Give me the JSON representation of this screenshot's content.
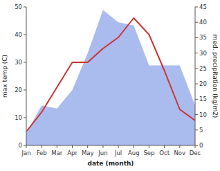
{
  "chart_data": {
    "type": "line",
    "xlabel": "date (month)",
    "ylabel": "max temp (C)",
    "y2label": "med. precipitation (kg/m2)",
    "categories": [
      "Jan",
      "Feb",
      "Mar",
      "Apr",
      "May",
      "Jun",
      "Jul",
      "Aug",
      "Sep",
      "Oct",
      "Nov",
      "Dec"
    ],
    "series": [
      {
        "type": "area",
        "axis": "y2",
        "color": "#aabbee",
        "values": [
          4,
          13,
          12,
          18,
          30,
          44,
          40,
          39,
          26,
          26,
          26,
          13
        ]
      },
      {
        "type": "line",
        "color": "#cc3333",
        "values": [
          5,
          12,
          21,
          30,
          30,
          35,
          39,
          46,
          40,
          27,
          13,
          9
        ]
      }
    ],
    "ylim": [
      0,
      50
    ],
    "yticks": [
      0,
      10,
      20,
      30,
      40,
      50
    ],
    "y2lim": [
      0,
      45
    ],
    "y2ticks": [
      0,
      5,
      10,
      15,
      20,
      25,
      30,
      35,
      40,
      45
    ],
    "grid": false
  }
}
